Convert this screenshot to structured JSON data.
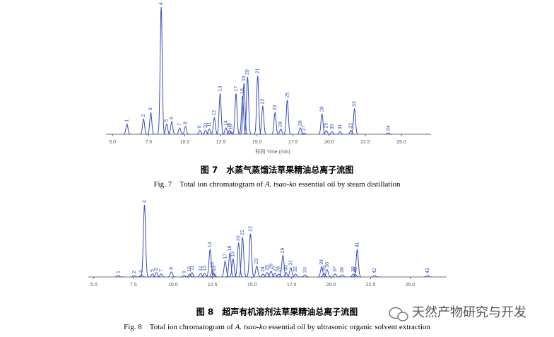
{
  "chart_data": [
    {
      "type": "chromatogram",
      "xlabel": "时间 Time (min)",
      "caption_cn": "图 7　水蒸气蒸馏法草果精油总离子流图",
      "caption_en": [
        "Fig. 7　Total ion chromatogram of ",
        "A. tsao-ko",
        " essential oil by steam distillation"
      ],
      "xlim": [
        4.55,
        27.05
      ],
      "xticks": [
        {
          "value": 5,
          "label": "5.0"
        },
        {
          "value": 7.5,
          "label": "7.5"
        },
        {
          "value": 10,
          "label": "10.0"
        },
        {
          "value": 12.5,
          "label": "12.5"
        },
        {
          "value": 15,
          "label": "15.0"
        },
        {
          "value": 17.5,
          "label": "17.5"
        },
        {
          "value": 20,
          "label": "20.0"
        },
        {
          "value": 22.5,
          "label": "22.5"
        },
        {
          "value": 25,
          "label": "25.0"
        }
      ],
      "color": "#3a4fb8",
      "peak_labels": [
        "1",
        "2",
        "3",
        "4",
        "5",
        "6",
        "7",
        "8",
        "9",
        "10",
        "11",
        "12",
        "13",
        "14",
        "15",
        "16",
        "17",
        "18",
        "19",
        "20",
        "21",
        "22",
        "23",
        "24",
        "25",
        "26",
        "27",
        "28",
        "29",
        "30",
        "31",
        "32",
        "33",
        "34"
      ],
      "x": [
        6.0,
        7.15,
        7.65,
        8.37,
        8.75,
        9.1,
        9.65,
        10.05,
        11.05,
        11.45,
        11.7,
        12.05,
        12.45,
        12.85,
        13.1,
        13.2,
        13.55,
        14.0,
        14.1,
        14.35,
        15.05,
        15.4,
        16.25,
        16.65,
        17.1,
        18.0,
        18.25,
        19.5,
        19.8,
        20.2,
        20.75,
        21.5,
        21.75,
        24.1
      ],
      "values": [
        8,
        12,
        17,
        100,
        8,
        10,
        5,
        6,
        3,
        3,
        4,
        13,
        32,
        5,
        3,
        2,
        32,
        30,
        40,
        45,
        46,
        22,
        17,
        4,
        27,
        5,
        1,
        16,
        3,
        2,
        2,
        3,
        20,
        1
      ]
    },
    {
      "type": "chromatogram",
      "caption_cn": "图 8　超声有机溶剂法草果精油总离子流图",
      "caption_en": [
        "Fig. 8　Total ion chromatogram of ",
        "A. tsao-ko",
        " essential oil by ultrasonic organic solvent extraction"
      ],
      "xlim": [
        4.65,
        27.3
      ],
      "xticks": [
        {
          "value": 5,
          "label": "5.0"
        },
        {
          "value": 7.5,
          "label": "7.5"
        },
        {
          "value": 10,
          "label": "10.0"
        },
        {
          "value": 12.5,
          "label": "12.5"
        },
        {
          "value": 15,
          "label": "15.0"
        },
        {
          "value": 17.5,
          "label": "17.5"
        },
        {
          "value": 20,
          "label": "20.0"
        },
        {
          "value": 22.5,
          "label": "22.5"
        },
        {
          "value": 25,
          "label": "25.0"
        }
      ],
      "color": "#3a4fb8",
      "peak_labels": [
        "1",
        "2",
        "3",
        "4",
        "5",
        "6",
        "7",
        "8",
        "9",
        "10",
        "11",
        "12",
        "13",
        "14",
        "15",
        "16",
        "17",
        "18",
        "19",
        "20",
        "21",
        "22",
        "23",
        "24",
        "25",
        "26",
        "27",
        "28",
        "29",
        "30",
        "31",
        "32",
        "33",
        "34",
        "35",
        "36",
        "37",
        "38",
        "39",
        "40",
        "41",
        "42",
        "43"
      ],
      "x": [
        6.55,
        7.55,
        8.0,
        8.2,
        8.7,
        8.95,
        9.25,
        9.9,
        10.7,
        11.05,
        11.2,
        11.75,
        12.0,
        12.35,
        12.5,
        12.6,
        13.3,
        13.6,
        13.8,
        14.15,
        14.4,
        14.9,
        15.3,
        15.7,
        15.95,
        16.2,
        16.45,
        16.7,
        16.95,
        17.15,
        17.45,
        17.75,
        18.35,
        19.4,
        19.55,
        19.75,
        20.25,
        20.7,
        21.4,
        21.55,
        21.65,
        22.75,
        26.1
      ],
      "values": [
        2,
        2,
        3,
        100,
        4,
        6,
        4,
        7,
        2,
        4,
        6,
        5,
        5,
        38,
        10,
        5,
        22,
        33,
        25,
        47,
        55,
        60,
        15,
        4,
        6,
        8,
        5,
        4,
        30,
        6,
        13,
        4,
        3,
        14,
        5,
        10,
        4,
        3,
        4,
        3,
        38,
        2,
        2
      ]
    }
  ],
  "watermark": "天然产物研究与开发"
}
